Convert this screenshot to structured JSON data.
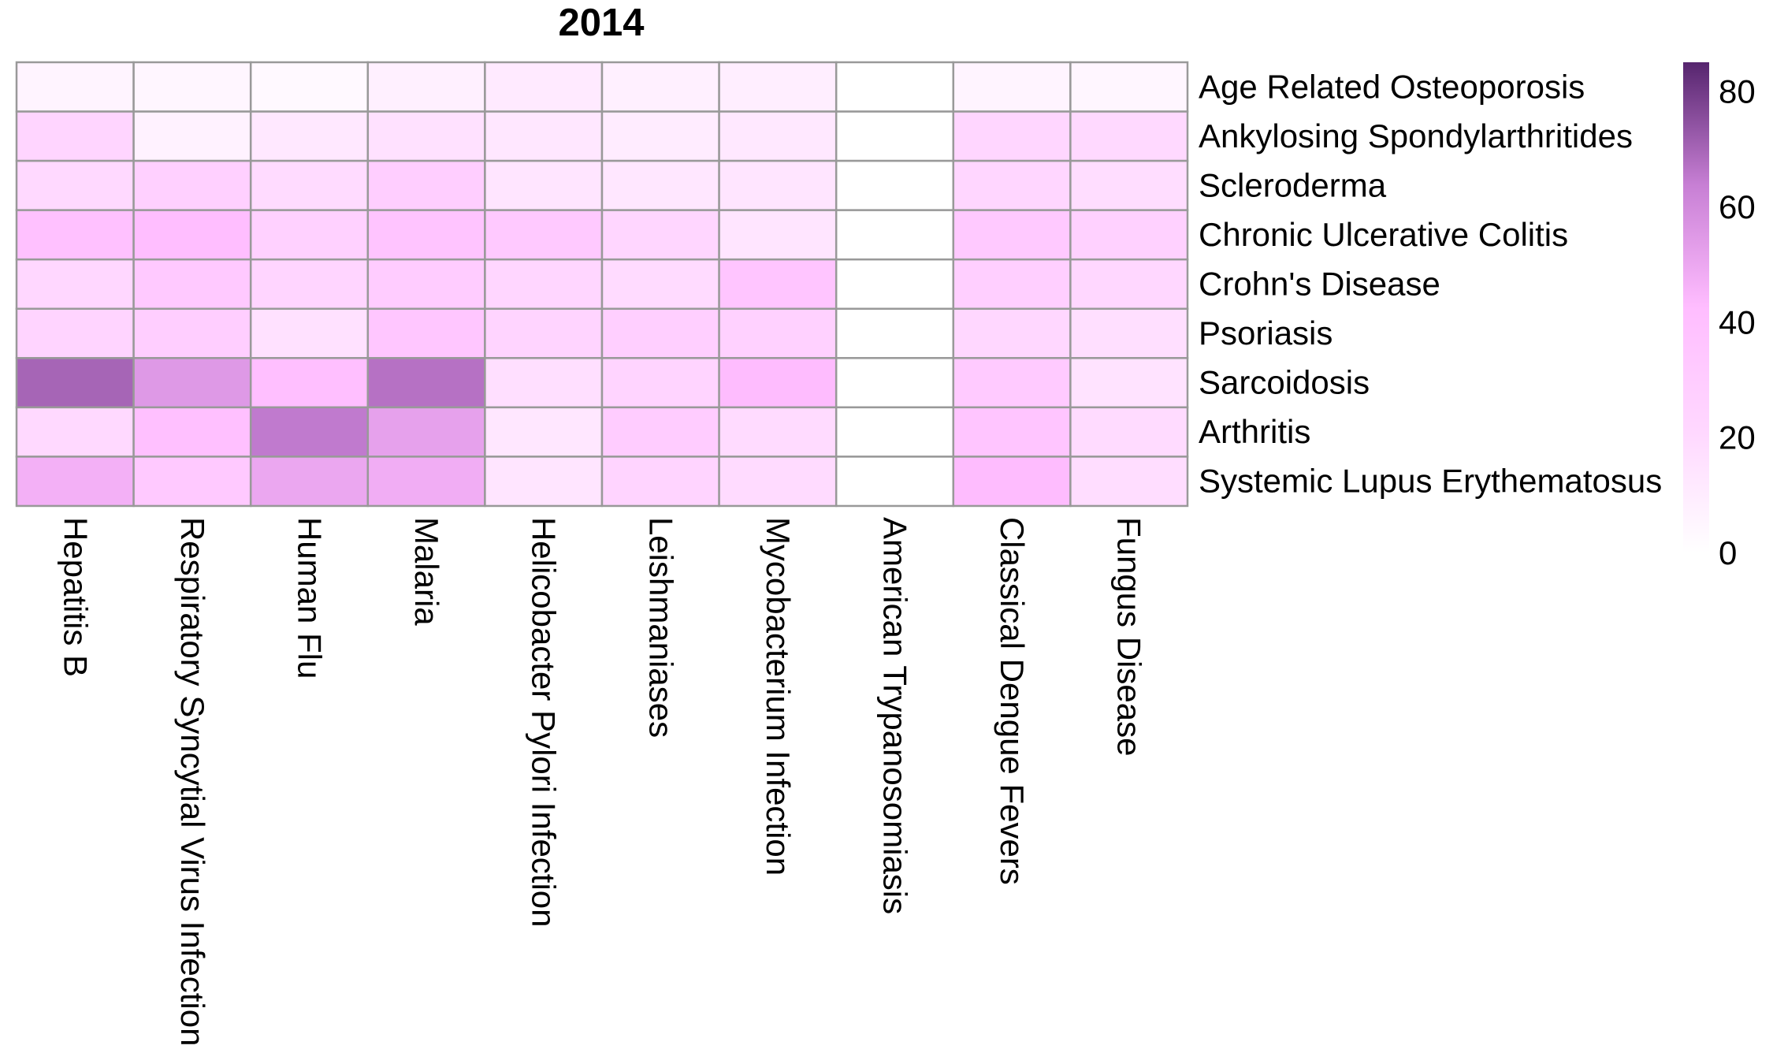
{
  "chart_data": {
    "type": "heatmap",
    "title": "2014",
    "rows": [
      "Age Related Osteoporosis",
      "Ankylosing Spondylarthritides",
      "Scleroderma",
      "Chronic Ulcerative Colitis",
      "Crohn's Disease",
      "Psoriasis",
      "Sarcoidosis",
      "Arthritis",
      "Systemic Lupus Erythematosus"
    ],
    "columns": [
      "Hepatitis B",
      "Respiratory Syncytial Virus Infection",
      "Human Flu",
      "Malaria",
      "Helicobacter Pylori Infection",
      "Leishmaniases",
      "Mycobacterium Infection",
      "American Trypanosomiasis",
      "Classical Dengue Fevers",
      "Fungus Disease"
    ],
    "values": [
      [
        6,
        5,
        3,
        8,
        11,
        8,
        9,
        0,
        6,
        5
      ],
      [
        23,
        7,
        12,
        16,
        13,
        10,
        12,
        0,
        22,
        20
      ],
      [
        20,
        27,
        19,
        29,
        14,
        13,
        14,
        0,
        22,
        18
      ],
      [
        39,
        42,
        26,
        37,
        33,
        22,
        14,
        0,
        33,
        26
      ],
      [
        21,
        33,
        23,
        30,
        22,
        19,
        36,
        0,
        28,
        21
      ],
      [
        24,
        29,
        16,
        35,
        24,
        28,
        26,
        0,
        21,
        17
      ],
      [
        70,
        55,
        41,
        67,
        17,
        24,
        43,
        0,
        32,
        15
      ],
      [
        20,
        40,
        65,
        52,
        13,
        30,
        19,
        0,
        36,
        19
      ],
      [
        47,
        33,
        50,
        48,
        14,
        24,
        19,
        0,
        43,
        18
      ]
    ],
    "color_scale": {
      "min": 0,
      "max": 85,
      "ticks": [
        0,
        20,
        40,
        60,
        80
      ],
      "stops": [
        "#ffffff",
        "#ffd7ff",
        "#ffbdff",
        "#c77fd4",
        "#56256e"
      ]
    },
    "legend_position": "right",
    "cell_border_color": "#999999"
  }
}
